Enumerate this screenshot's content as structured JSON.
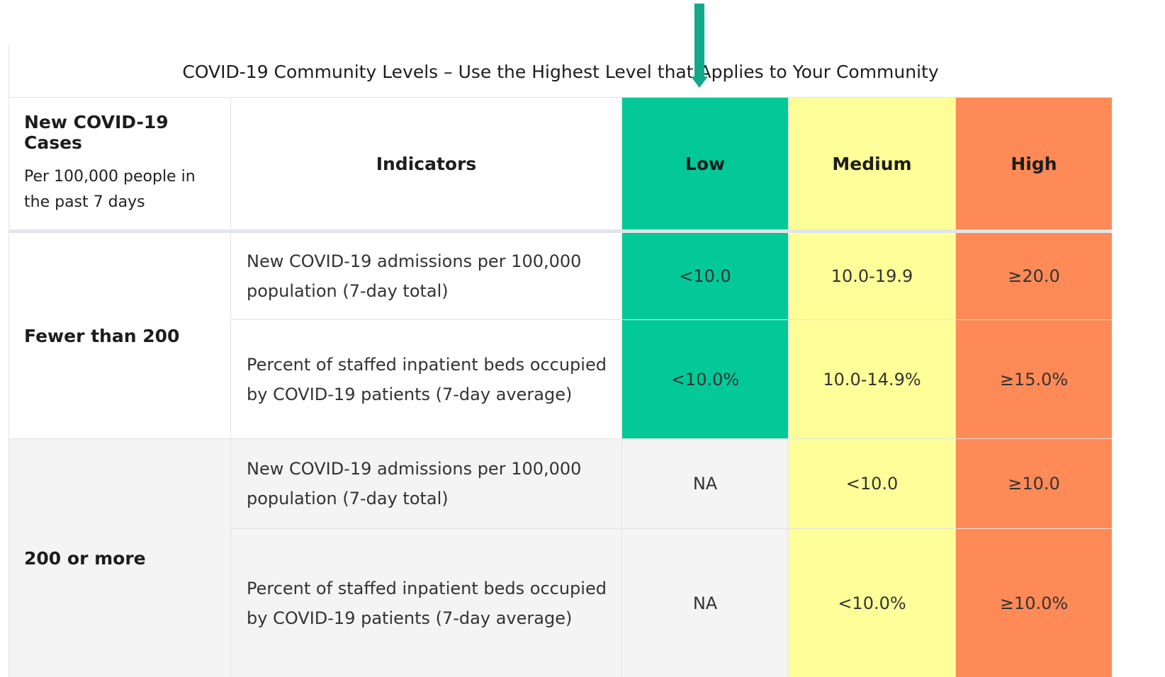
{
  "title": "COVID-19 Community Levels – Use the Highest Level that Applies to Your Community",
  "header": {
    "cases": "New COVID-19 Cases",
    "cases_sub": "Per 100,000 people in the past 7 days",
    "indicators": "Indicators",
    "levels": [
      "Low",
      "Medium",
      "High"
    ]
  },
  "groups": [
    {
      "label": "Fewer than 200",
      "rows": [
        {
          "indicator": "New COVID-19 admissions per 100,000 population (7-day total)",
          "values": [
            "<10.0",
            "10.0-19.9",
            "≥20.0"
          ]
        },
        {
          "indicator": "Percent of staffed inpatient beds occupied by COVID-19 patients (7-day average)",
          "values": [
            "<10.0%",
            "10.0-14.9%",
            "≥15.0%"
          ]
        }
      ]
    },
    {
      "label": "200 or more",
      "rows": [
        {
          "indicator": "New COVID-19 admissions per 100,000 population (7-day total)",
          "values": [
            "NA",
            "<10.0",
            "≥10.0"
          ]
        },
        {
          "indicator": "Percent of staffed inpatient beds occupied by COVID-19 patients (7-day average)",
          "values": [
            "NA",
            "<10.0%",
            "≥10.0%"
          ]
        }
      ]
    }
  ]
}
